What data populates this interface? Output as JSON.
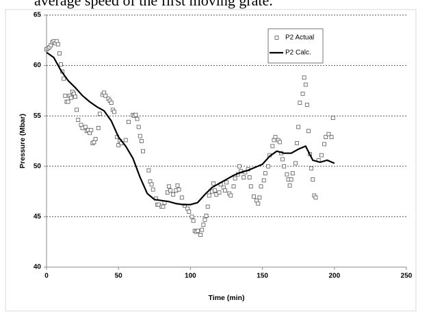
{
  "caption": "average speed of the first moving grate.",
  "chart_data": {
    "type": "scatter",
    "xlabel": "Time (min)",
    "ylabel": "Pressure (Mbar)",
    "xlim": [
      0,
      250
    ],
    "xticks": [
      0,
      50,
      100,
      150,
      200,
      250
    ],
    "ylim": [
      40,
      65
    ],
    "yticks": [
      40,
      45,
      50,
      55,
      60,
      65
    ],
    "grid": true,
    "legend": "upper right",
    "series": [
      {
        "name": "P2 Actual",
        "type": "scatter",
        "color": "#555555",
        "x": [
          0,
          1,
          2,
          3,
          4,
          5,
          6,
          7,
          8,
          9,
          10,
          11,
          12,
          13,
          14,
          15,
          16,
          17,
          18,
          19,
          20,
          21,
          22,
          24,
          25,
          27,
          28,
          29,
          30,
          31,
          32,
          33,
          34,
          36,
          37,
          39,
          40,
          41,
          43,
          44,
          45,
          46,
          47,
          49,
          50,
          51,
          52,
          55,
          57,
          60,
          61,
          62,
          63,
          64,
          65,
          66,
          67,
          71,
          72,
          73,
          74,
          76,
          77,
          78,
          80,
          81,
          82,
          84,
          85,
          86,
          88,
          90,
          91,
          92,
          94,
          96,
          98,
          99,
          101,
          102,
          103,
          104,
          105,
          107,
          108,
          109,
          110,
          111,
          112,
          113,
          115,
          116,
          117,
          118,
          120,
          121,
          123,
          124,
          125,
          127,
          128,
          130,
          131,
          133,
          134,
          135,
          137,
          138,
          140,
          141,
          142,
          144,
          146,
          147,
          148,
          149,
          151,
          152,
          154,
          155,
          157,
          158,
          159,
          161,
          162,
          163,
          164,
          165,
          167,
          168,
          169,
          170,
          171,
          173,
          174,
          175,
          176,
          178,
          179,
          180,
          181,
          182,
          183,
          184,
          185,
          186,
          187,
          189,
          191,
          193,
          194,
          196,
          198,
          199
        ],
        "values": [
          61.6,
          61.7,
          61.8,
          62.0,
          62.3,
          62.4,
          62.2,
          62.4,
          62.1,
          61.2,
          60.1,
          59.4,
          58.7,
          57.0,
          56.4,
          56.4,
          57.0,
          56.8,
          57.4,
          57.2,
          56.9,
          55.6,
          54.6,
          54.1,
          53.8,
          53.9,
          53.5,
          53.6,
          53.3,
          53.6,
          52.3,
          52.4,
          52.7,
          53.8,
          55.2,
          57.1,
          57.3,
          57.0,
          56.7,
          56.5,
          56.3,
          55.6,
          55.4,
          52.9,
          52.1,
          52.5,
          52.3,
          52.6,
          54.4,
          55.1,
          55.0,
          55.1,
          54.7,
          53.9,
          53.0,
          52.5,
          51.5,
          49.6,
          48.5,
          48.2,
          47.7,
          46.8,
          46.2,
          46.2,
          46.0,
          46.0,
          46.4,
          47.4,
          48.0,
          47.6,
          47.2,
          47.6,
          48.1,
          47.7,
          46.9,
          46.1,
          45.8,
          45.5,
          45.0,
          44.6,
          43.6,
          43.5,
          43.6,
          43.2,
          43.7,
          44.2,
          44.7,
          45.1,
          46.0,
          47.1,
          47.5,
          48.3,
          47.6,
          47.2,
          47.4,
          48.2,
          47.9,
          47.6,
          48.4,
          47.3,
          47.1,
          48.0,
          48.8,
          49.2,
          50.0,
          49.5,
          48.9,
          49.4,
          49.7,
          48.9,
          48.0,
          47.0,
          46.6,
          46.3,
          46.9,
          48.0,
          48.6,
          49.3,
          50.0,
          51.1,
          52.0,
          52.6,
          52.9,
          52.6,
          52.4,
          51.3,
          50.7,
          50.0,
          49.2,
          48.7,
          48.1,
          48.7,
          49.3,
          50.3,
          52.3,
          53.9,
          56.3,
          57.2,
          58.8,
          58.1,
          56.1,
          53.5,
          51.2,
          49.8,
          48.7,
          47.1,
          46.9,
          50.6,
          51.1,
          52.2,
          52.9,
          53.2,
          52.9,
          54.8
        ]
      },
      {
        "name": "P2 Calc.",
        "type": "line",
        "color": "#000000",
        "x": [
          0,
          5,
          10,
          15,
          20,
          25,
          30,
          35,
          40,
          45,
          50,
          55,
          60,
          65,
          70,
          75,
          80,
          85,
          90,
          95,
          100,
          105,
          110,
          115,
          120,
          125,
          130,
          135,
          140,
          145,
          150,
          155,
          160,
          165,
          170,
          175,
          180,
          185,
          190,
          195,
          200
        ],
        "values": [
          61.3,
          60.8,
          59.5,
          58.5,
          57.8,
          57.0,
          56.4,
          55.9,
          55.5,
          54.5,
          52.9,
          52.0,
          50.8,
          48.9,
          47.3,
          46.7,
          46.6,
          46.5,
          46.3,
          46.2,
          46.2,
          46.4,
          47.2,
          47.9,
          48.3,
          48.7,
          49.1,
          49.4,
          49.6,
          49.9,
          50.2,
          51.0,
          51.5,
          51.3,
          51.3,
          51.7,
          52.0,
          50.6,
          50.4,
          50.6,
          50.3
        ]
      }
    ]
  }
}
